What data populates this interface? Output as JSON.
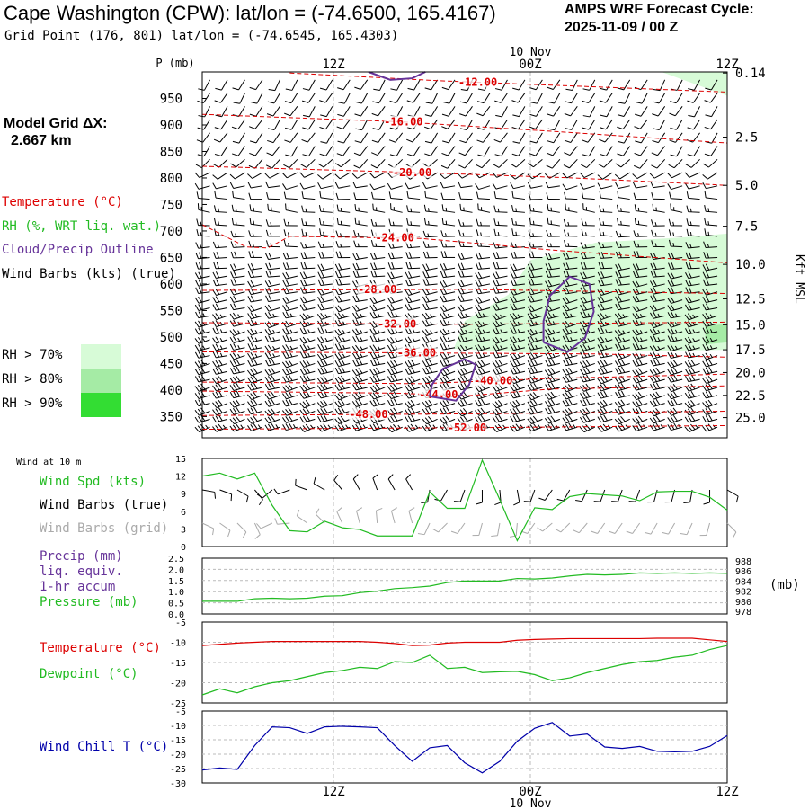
{
  "header": {
    "title": "Cape Washington (CPW):  lat/lon = (-74.6500, 165.4167)",
    "subtitle": "Grid Point (176, 801) lat/lon = (-74.6545, 165.4303)",
    "cycle_title": "AMPS WRF Forecast Cycle:",
    "cycle_date": "2025-11-09 / 00  Z",
    "model_grid_label": "Model Grid ΔX:",
    "model_grid_value": "2.667 km"
  },
  "colors": {
    "temperature": "#dd0000",
    "rh": "#22bb22",
    "cloud": "#663399",
    "wind_barb": "#000000",
    "wind_barb_grid": "#aaaaaa",
    "wind_chill": "#0000aa",
    "rh70": "#d7fbd7",
    "rh80": "#a5eba5",
    "rh90": "#33dd33",
    "grid": "#bbbbbb"
  },
  "legend": {
    "temperature": "Temperature (°C)",
    "rh": "RH (%, WRT liq. wat.)",
    "cloud": "Cloud/Precip Outline",
    "wind": "Wind Barbs (kts) (true)",
    "rh_levels": [
      "RH > 70%",
      "RH > 80%",
      "RH > 90%"
    ]
  },
  "panel_labels": {
    "wind10m_title": "Wind at 10 m",
    "wind_speed": "Wind Spd (kts)",
    "barbs_true": "Wind Barbs (true)",
    "barbs_grid": "Wind Barbs (grid)",
    "precip_line1": "Precip (mm)",
    "precip_line2": "liq. equiv.",
    "precip_line3": "1-hr accum",
    "pressure": "Pressure (mb)",
    "pressure_unit": "(mb)",
    "temperature": "Temperature (°C)",
    "dewpoint": "Dewpoint (°C)",
    "wind_chill": "Wind Chill T (°C)"
  },
  "chart_data": {
    "type": "meteogram",
    "time_axis": {
      "range_hours": [
        0,
        24
      ],
      "ticks": [
        {
          "hour": 6,
          "label": "12Z"
        },
        {
          "hour": 15,
          "label": "00Z"
        },
        {
          "hour": 24,
          "label": "12Z"
        }
      ],
      "date_label": "10 Nov",
      "date_hour": 15
    },
    "profile": {
      "ylabel": "P (mb)",
      "pressure_ticks": [
        350,
        400,
        450,
        500,
        550,
        600,
        650,
        700,
        750,
        800,
        850,
        900,
        950
      ],
      "pressure_range": [
        1000,
        310
      ],
      "height_axis_label": "Kft MSL",
      "height_ticks": [
        {
          "p": 348,
          "label": "25.0"
        },
        {
          "p": 390,
          "label": "22.5"
        },
        {
          "p": 433,
          "label": "20.0"
        },
        {
          "p": 476,
          "label": "17.5"
        },
        {
          "p": 523,
          "label": "15.0"
        },
        {
          "p": 572,
          "label": "12.5"
        },
        {
          "p": 637,
          "label": "10.0"
        },
        {
          "p": 709,
          "label": "7.5"
        },
        {
          "p": 786,
          "label": "5.0"
        },
        {
          "p": 877,
          "label": "2.5"
        },
        {
          "p": 998,
          "label": "0.14"
        }
      ],
      "isotherms": [
        {
          "label": "-52.00",
          "label_hour": 12.1,
          "points": [
            [
              0,
              326
            ],
            [
              12,
              329
            ],
            [
              24,
              333
            ]
          ]
        },
        {
          "label": "-48.00",
          "label_hour": 7.6,
          "points": [
            [
              0,
              352
            ],
            [
              12,
              355
            ],
            [
              24,
              360
            ]
          ]
        },
        {
          "label": "-44.00",
          "label_hour": 10.8,
          "points": [
            [
              0,
              398
            ],
            [
              9,
              394
            ],
            [
              12,
              389
            ],
            [
              16,
              402
            ],
            [
              24,
              408
            ]
          ]
        },
        {
          "label": "-40.00",
          "label_hour": 13.3,
          "points": [
            [
              0,
              415
            ],
            [
              10,
              412
            ],
            [
              16,
              422
            ],
            [
              24,
              430
            ]
          ]
        },
        {
          "label": "-36.00",
          "label_hour": 9.8,
          "points": [
            [
              0,
              472
            ],
            [
              10,
              470
            ],
            [
              18,
              468
            ],
            [
              24,
              462
            ]
          ]
        },
        {
          "label": "-32.00",
          "label_hour": 8.9,
          "points": [
            [
              0,
              527
            ],
            [
              12,
              524
            ],
            [
              18,
              526
            ],
            [
              24,
              528
            ]
          ]
        },
        {
          "label": "-28.00",
          "label_hour": 8.0,
          "points": [
            [
              0,
              588
            ],
            [
              12,
              590
            ],
            [
              24,
              582
            ]
          ]
        },
        {
          "label": "-24.00",
          "label_hour": 8.8,
          "points": [
            [
              0,
              712
            ],
            [
              2,
              670
            ],
            [
              3,
              668
            ],
            [
              4,
              690
            ],
            [
              10,
              686
            ],
            [
              16,
              664
            ],
            [
              24,
              640
            ]
          ]
        },
        {
          "label": "-20.00",
          "label_hour": 9.6,
          "points": [
            [
              0,
              822
            ],
            [
              10,
              810
            ],
            [
              17,
              800
            ],
            [
              24,
              786
            ]
          ]
        },
        {
          "label": "-16.00",
          "label_hour": 9.2,
          "points": [
            [
              0,
              920
            ],
            [
              9,
              906
            ],
            [
              16,
              888
            ],
            [
              24,
              866
            ]
          ]
        },
        {
          "label": "-12.00",
          "label_hour": 12.6,
          "points": [
            [
              4,
              998
            ],
            [
              11,
              983
            ],
            [
              16,
              975
            ],
            [
              24,
              962
            ]
          ]
        }
      ],
      "rh_fill_70": [
        [
          11.5,
          478
        ],
        [
          15,
          470
        ],
        [
          24,
          476
        ],
        [
          24,
          695
        ],
        [
          22,
          688
        ],
        [
          18,
          678
        ],
        [
          15,
          645
        ],
        [
          14,
          580
        ],
        [
          12,
          530
        ]
      ],
      "rh_fill_70_surface": [
        [
          21,
          1000
        ],
        [
          24,
          955
        ],
        [
          24,
          1000
        ]
      ],
      "rh_fill_80": [
        [
          24,
          490
        ],
        [
          23,
          486
        ],
        [
          23,
          520
        ],
        [
          24,
          525
        ]
      ],
      "cloud_outlines": [
        [
          [
            10.4,
            388
          ],
          [
            11.6,
            380
          ],
          [
            12.2,
            410
          ],
          [
            12.5,
            448
          ],
          [
            12.0,
            458
          ],
          [
            11.0,
            440
          ],
          [
            10.5,
            410
          ],
          [
            10.4,
            388
          ]
        ],
        [
          [
            15.6,
            490
          ],
          [
            16.7,
            472
          ],
          [
            17.5,
            498
          ],
          [
            17.9,
            548
          ],
          [
            17.7,
            600
          ],
          [
            16.8,
            614
          ],
          [
            15.9,
            578
          ],
          [
            15.6,
            530
          ],
          [
            15.6,
            490
          ]
        ],
        [
          [
            7.6,
            1000
          ],
          [
            8.6,
            985
          ],
          [
            9.6,
            988
          ],
          [
            10.2,
            1000
          ]
        ]
      ],
      "barb_levels": [
        330,
        345,
        360,
        375,
        390,
        405,
        420,
        435,
        450,
        465,
        480,
        495,
        510,
        525,
        540,
        555,
        570,
        585,
        600,
        615,
        630,
        650,
        670,
        690,
        710,
        735,
        760,
        785,
        810,
        835,
        860,
        885,
        910,
        935,
        960,
        985
      ],
      "barb_wind": [
        {
          "p": 330,
          "dir": 250,
          "spd": 35
        },
        {
          "p": 450,
          "dir": 255,
          "spd": 30
        },
        {
          "p": 550,
          "dir": 255,
          "spd": 25
        },
        {
          "p": 650,
          "dir": 265,
          "spd": 20
        },
        {
          "p": 750,
          "dir": 280,
          "spd": 15
        },
        {
          "p": 850,
          "dir": 215,
          "spd": 12
        },
        {
          "p": 985,
          "dir": 210,
          "spd": 10
        }
      ]
    },
    "wind10m": {
      "yticks": [
        0,
        3,
        6,
        9,
        12,
        15
      ],
      "ylim": [
        0,
        15
      ],
      "speed": [
        12,
        12.5,
        11.5,
        12.5,
        7,
        2.7,
        2.5,
        4.3,
        3.2,
        2.9,
        1.8,
        1.8,
        1.8,
        9.3,
        6.5,
        6.5,
        14.7,
        8,
        1,
        6.6,
        6.3,
        8.5,
        9,
        8.8,
        8.6,
        7.8,
        9.3,
        9.4,
        9.4,
        8.4,
        6.2
      ],
      "direction": [
        100,
        110,
        120,
        140,
        230,
        250,
        290,
        300,
        320,
        330,
        340,
        330,
        330,
        190,
        210,
        200,
        180,
        175,
        170,
        200,
        215,
        210,
        205,
        200,
        200,
        200,
        195,
        195,
        190,
        180,
        120
      ]
    },
    "precip_pressure": {
      "precip_yticks": [
        "0.0",
        "0.5",
        "1.0",
        "1.5",
        "2.0",
        "2.5"
      ],
      "precip_ylim": [
        0,
        2.5
      ],
      "pressure_yticks": [
        "978",
        "980",
        "982",
        "984",
        "986",
        "988"
      ],
      "pressure_ylim": [
        977.5,
        988.5
      ],
      "pressure": [
        980,
        980,
        980,
        980.5,
        980.6,
        980.5,
        980.6,
        981,
        981.1,
        981.7,
        982,
        982.5,
        982.7,
        983,
        983.7,
        984,
        984,
        984,
        984.5,
        984.4,
        984.6,
        985,
        985.3,
        985.2,
        985.3,
        985.6,
        985.5,
        985.6,
        985.5,
        985.6,
        985.5
      ]
    },
    "temp_dew": {
      "yticks": [
        "-5",
        "-10",
        "-15",
        "-20",
        "-25"
      ],
      "ylim": [
        -25,
        -5
      ],
      "temperature": [
        -10.8,
        -10.5,
        -10.2,
        -10,
        -9.8,
        -9.8,
        -9.8,
        -9.8,
        -9.8,
        -9.8,
        -10,
        -10.3,
        -10.8,
        -10.7,
        -10.2,
        -10,
        -10,
        -10,
        -9.5,
        -9.3,
        -9.2,
        -9.1,
        -9.1,
        -9.1,
        -9.1,
        -9.1,
        -9,
        -9,
        -9,
        -9.4,
        -9.8
      ],
      "dewpoint": [
        -23,
        -21.5,
        -22.5,
        -21,
        -20,
        -19.5,
        -18.5,
        -17.5,
        -17,
        -16.2,
        -16.5,
        -14.8,
        -15,
        -13.2,
        -16.5,
        -16.2,
        -17.5,
        -17.3,
        -17.2,
        -18,
        -19.5,
        -18.8,
        -17.5,
        -16.5,
        -15.5,
        -14.8,
        -14.5,
        -13.7,
        -13.2,
        -11.8,
        -10.8
      ]
    },
    "wind_chill": {
      "yticks": [
        "-5",
        "-10",
        "-15",
        "-20",
        "-25",
        "-30"
      ],
      "ylim": [
        -30,
        -5
      ],
      "values": [
        -25.5,
        -24.8,
        -25.3,
        -17,
        -10.5,
        -10.8,
        -12.8,
        -10.5,
        -10.3,
        -10.5,
        -10.8,
        -17,
        -22.5,
        -17.8,
        -17,
        -23,
        -26.5,
        -22.5,
        -15.5,
        -11,
        -9,
        -13.7,
        -13,
        -17.5,
        -18,
        -17.3,
        -19,
        -19.2,
        -19,
        -17.3,
        -13.5
      ]
    }
  }
}
